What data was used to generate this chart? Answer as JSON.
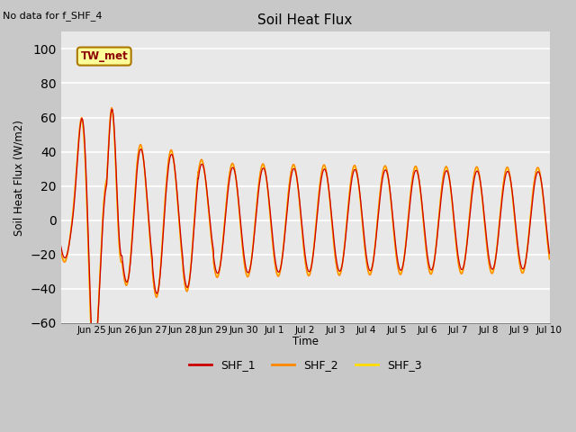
{
  "title": "Soil Heat Flux",
  "subtitle": "No data for f_SHF_4",
  "ylabel": "Soil Heat Flux (W/m2)",
  "xlabel": "Time",
  "legend_label": "TW_met",
  "series_labels": [
    "SHF_1",
    "SHF_2",
    "SHF_3"
  ],
  "series_colors": [
    "#cc0000",
    "#ff8800",
    "#ffdd00"
  ],
  "ylim": [
    -60,
    110
  ],
  "yticks": [
    -60,
    -40,
    -20,
    0,
    20,
    40,
    60,
    80,
    100
  ],
  "plot_bg_color": "#e8e8e8",
  "fig_bg_color": "#c8c8c8",
  "grid_color": "white",
  "tick_labels": [
    "Jun 25",
    "Jun 26",
    "Jun 27",
    "Jun 28",
    "Jun 29",
    "Jun 30",
    "Jul 1",
    "Jul 2",
    "Jul 3",
    "Jul 4",
    "Jul 5",
    "Jul 6",
    "Jul 7",
    "Jul 8",
    "Jul 9",
    "Jul 10"
  ],
  "points_per_day": 144
}
